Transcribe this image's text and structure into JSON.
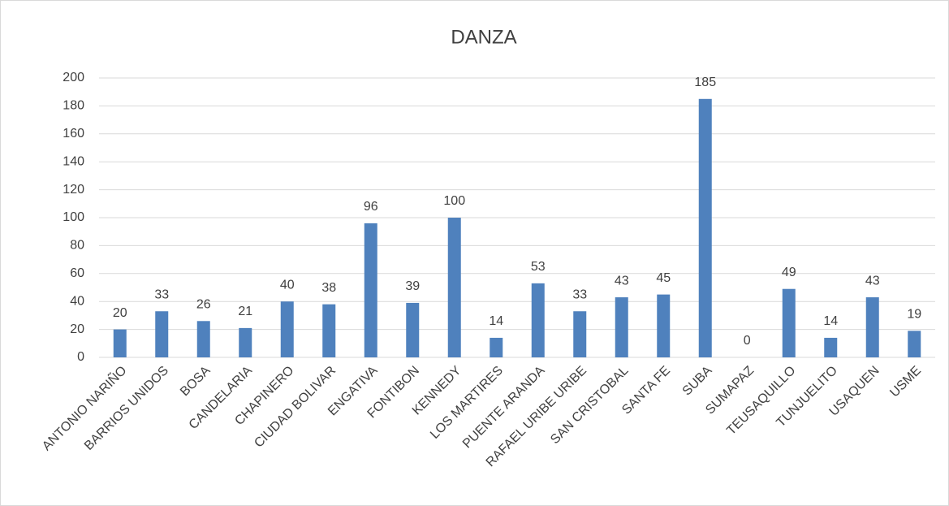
{
  "chart_data": {
    "type": "bar",
    "title": "DANZA",
    "categories": [
      "ANTONIO NARIÑO",
      "BARRIOS UNIDOS",
      "BOSA",
      "CANDELARIA",
      "CHAPINERO",
      "CIUDAD BOLIVAR",
      "ENGATIVA",
      "FONTIBON",
      "KENNEDY",
      "LOS MARTIRES",
      "PUENTE ARANDA",
      "RAFAEL URIBE URIBE",
      "SAN CRISTOBAL",
      "SANTA FE",
      "SUBA",
      "SUMAPAZ",
      "TEUSAQUILLO",
      "TUNJUELITO",
      "USAQUEN",
      "USME"
    ],
    "values": [
      20,
      33,
      26,
      21,
      40,
      38,
      96,
      39,
      100,
      14,
      53,
      33,
      43,
      45,
      185,
      0,
      49,
      14,
      43,
      19
    ],
    "color": "#4f81bd",
    "ylim": [
      0,
      200
    ],
    "yticks": [
      0,
      20,
      40,
      60,
      80,
      100,
      120,
      140,
      160,
      180,
      200
    ],
    "grid": true
  }
}
